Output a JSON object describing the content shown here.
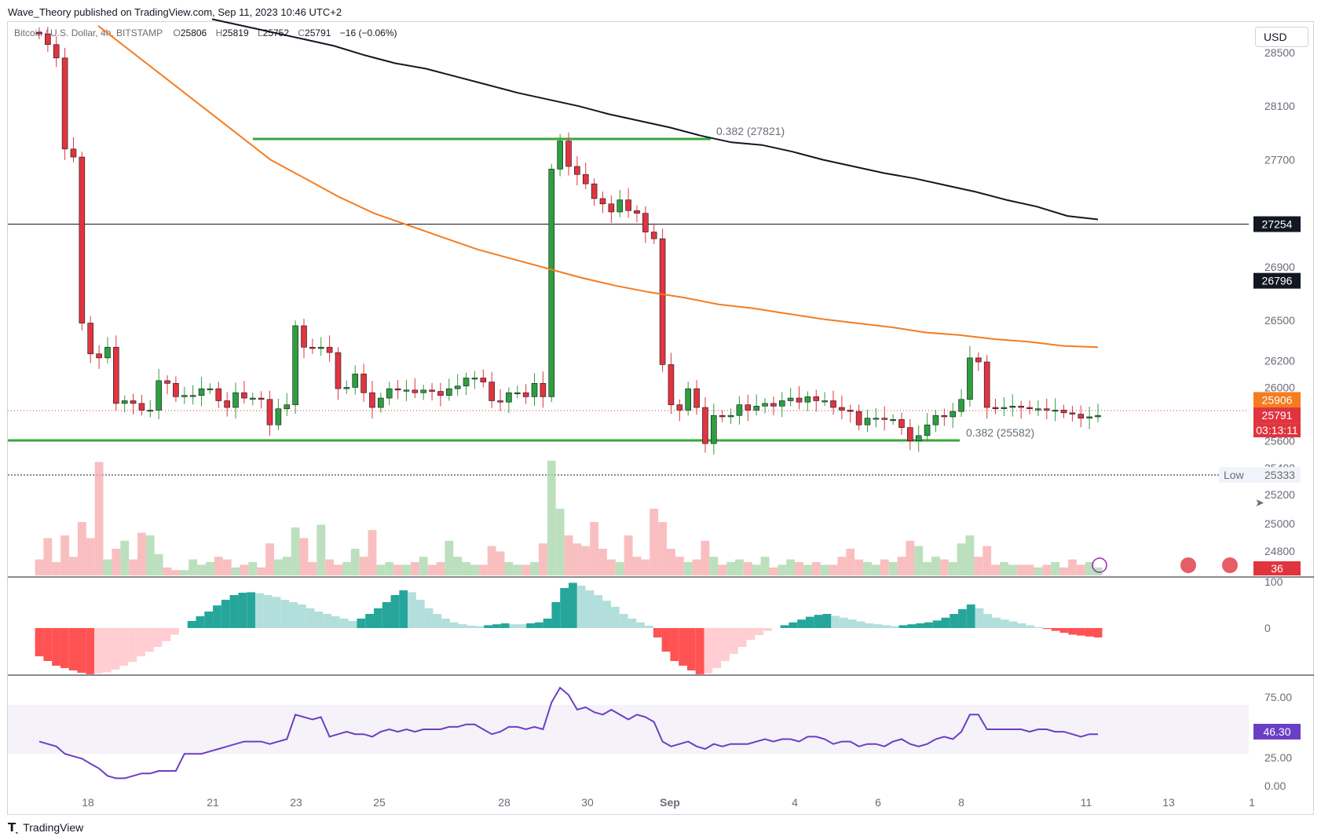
{
  "header": {
    "published": "Wave_Theory published on TradingView.com, Sep 11, 2023 10:46 UTC+2"
  },
  "legend": {
    "symbol": "Bitcoin / U.S. Dollar, 4h, BITSTAMP",
    "open_label": "O",
    "open": "25806",
    "high_label": "H",
    "high": "25819",
    "low_label": "L",
    "low": "25752",
    "close_label": "C",
    "close": "25791",
    "change": "−16 (−0.06%)"
  },
  "currency_button": "USD",
  "footer": {
    "brand": "TradingView"
  },
  "colors": {
    "up": "#26a69a",
    "candle_up": "#2e9e3e",
    "candle_down": "#e0343f",
    "ema50": "#f57c1f",
    "ema200": "#131722",
    "fib": "#3aa53a",
    "rsi": "#6a3fc4",
    "macd": "#2962ff",
    "signal": "#f57c1f"
  },
  "chart_data": [
    {
      "type": "candlestick",
      "title": "Bitcoin / U.S. Dollar, 4h, BITSTAMP",
      "ylim": [
        25000,
        28700
      ],
      "y_ticks": [
        "28500",
        "28100",
        "27700",
        "26900",
        "26500",
        "26200",
        "26000",
        "25600",
        "25400",
        "25200",
        "25000",
        "24800"
      ],
      "x_ticks": [
        "18",
        "21",
        "23",
        "25",
        "28",
        "30",
        "Sep",
        "4",
        "6",
        "8",
        "11",
        "13",
        "1"
      ],
      "price_tags": [
        {
          "label": "27254",
          "value": 27254,
          "color": "#131722"
        },
        {
          "label": "26796",
          "value": 26796,
          "color": "#131722"
        },
        {
          "label": "25906",
          "value": 25906,
          "color": "#f57c1f"
        },
        {
          "label": "25791",
          "value": 25791,
          "color": "#e0343f"
        }
      ],
      "countdown": "03:13:11",
      "low_marker": {
        "label": "Low",
        "value": "25333"
      },
      "volume_tag": "36",
      "horizontal_lines": [
        {
          "value": 27254,
          "color": "#131722"
        },
        {
          "value": 25333,
          "color": "#131722",
          "dotted": true
        }
      ],
      "fib_levels": [
        {
          "label": "0.382 (27821)",
          "value": 27821
        },
        {
          "label": "0.382 (25582)",
          "value": 25582
        }
      ],
      "ohlc_approx": {
        "start_close": 28650,
        "closes": [
          28640,
          28560,
          28460,
          27780,
          27720,
          26480,
          26250,
          26220,
          26300,
          25880,
          25900,
          25880,
          25830,
          25830,
          26050,
          26030,
          25930,
          25940,
          25940,
          25990,
          25990,
          25900,
          25850,
          25960,
          25920,
          25920,
          25910,
          25720,
          25840,
          25870,
          26460,
          26300,
          26290,
          26300,
          26260,
          25990,
          26000,
          26100,
          25960,
          25850,
          25920,
          25990,
          25980,
          25980,
          25960,
          25980,
          25970,
          25940,
          25990,
          26010,
          26070,
          26070,
          26040,
          25900,
          25890,
          25960,
          25960,
          25930,
          26030,
          25930,
          27630,
          27840,
          27650,
          27590,
          27520,
          27410,
          27370,
          27310,
          27400,
          27320,
          27300,
          27160,
          27110,
          26170,
          25870,
          25830,
          25990,
          25850,
          25580,
          25790,
          25780,
          25790,
          25870,
          25830,
          25860,
          25880,
          25860,
          25900,
          25920,
          25890,
          25930,
          25900,
          25900,
          25850,
          25830,
          25820,
          25720,
          25770,
          25770,
          25760,
          25760,
          25700,
          25600,
          25640,
          25720,
          25790,
          25780,
          25820,
          25910,
          26220,
          26190,
          25850,
          25840,
          25850,
          25860,
          25850,
          25840,
          25840,
          25830,
          25830,
          25810,
          25800,
          25770,
          25780,
          25790
        ],
        "ema50": [
          28700,
          28500,
          28300,
          28100,
          27900,
          27700,
          27560,
          27420,
          27300,
          27210,
          27120,
          27030,
          26960,
          26890,
          26820,
          26760,
          26710,
          26670,
          26620,
          26590,
          26550,
          26510,
          26480,
          26450,
          26410,
          26390,
          26360,
          26340,
          26310,
          26300
        ],
        "ema200": [
          28750,
          28700,
          28650,
          28600,
          28550,
          28480,
          28420,
          28380,
          28320,
          28260,
          28200,
          28150,
          28100,
          28040,
          27990,
          27940,
          27880,
          27830,
          27810,
          27760,
          27700,
          27650,
          27600,
          27560,
          27510,
          27460,
          27400,
          27350,
          27280,
          27254
        ]
      }
    },
    {
      "type": "bar",
      "title": "Volume",
      "series": [
        {
          "values": [
            12,
            28,
            10,
            30,
            14,
            40,
            28,
            85,
            12,
            20,
            26,
            12,
            32,
            30,
            16,
            6,
            4,
            4,
            12,
            8,
            10,
            14,
            12,
            6,
            8,
            10,
            6,
            24,
            12,
            14,
            36,
            28,
            10,
            38,
            12,
            8,
            10,
            20,
            14,
            34,
            8,
            10,
            8,
            8,
            10,
            14,
            8,
            10,
            26,
            14,
            10,
            8,
            8,
            22,
            18,
            10,
            8,
            8,
            10,
            24,
            86,
            50,
            30,
            24,
            22,
            40,
            20,
            12,
            10,
            30,
            14,
            12,
            50,
            40,
            20,
            14,
            10,
            12,
            26,
            14,
            8,
            10,
            12,
            10,
            8,
            14,
            6,
            8,
            12,
            10,
            8,
            10,
            8,
            8,
            14,
            20,
            12,
            10,
            8,
            12,
            10,
            14,
            26,
            22,
            10,
            14,
            12,
            10,
            24,
            30,
            14,
            22,
            8,
            10,
            8,
            8,
            8,
            6,
            8,
            10,
            6,
            12,
            8,
            10,
            6
          ]
        }
      ]
    },
    {
      "type": "bar",
      "title": "MACD",
      "y_ticks": [
        "100",
        "0"
      ],
      "series": [
        {
          "values": [
            -60,
            -70,
            -80,
            -85,
            -90,
            -95,
            -98,
            -96,
            -94,
            -88,
            -80,
            -72,
            -60,
            -50,
            -40,
            -28,
            -14,
            0,
            15,
            25,
            35,
            48,
            60,
            70,
            75,
            76,
            74,
            70,
            66,
            60,
            55,
            50,
            42,
            35,
            30,
            25,
            20,
            15,
            20,
            30,
            42,
            55,
            70,
            80,
            76,
            60,
            42,
            30,
            20,
            12,
            8,
            5,
            4,
            6,
            8,
            10,
            8,
            8,
            10,
            12,
            20,
            55,
            85,
            96,
            90,
            80,
            70,
            58,
            45,
            30,
            20,
            12,
            5,
            -20,
            -50,
            -70,
            -80,
            -90,
            -98,
            -96,
            -85,
            -70,
            -55,
            -40,
            -25,
            -15,
            -6,
            0,
            6,
            12,
            18,
            24,
            28,
            30,
            26,
            22,
            18,
            14,
            10,
            8,
            6,
            4,
            6,
            8,
            10,
            12,
            16,
            22,
            30,
            40,
            50,
            42,
            30,
            22,
            18,
            14,
            10,
            6,
            2,
            -2,
            -6,
            -10,
            -14,
            -16,
            -18,
            -20
          ]
        }
      ]
    },
    {
      "type": "line",
      "title": "RSI",
      "y_ticks": [
        "75.00",
        "25.00",
        "0.00"
      ],
      "current": "46.30",
      "ylim": [
        0,
        100
      ],
      "series": [
        {
          "values": [
            40,
            38,
            36,
            30,
            28,
            26,
            22,
            18,
            12,
            10,
            10,
            12,
            14,
            14,
            16,
            16,
            16,
            30,
            30,
            30,
            32,
            34,
            36,
            38,
            40,
            40,
            40,
            38,
            40,
            42,
            62,
            60,
            58,
            60,
            44,
            46,
            48,
            46,
            46,
            44,
            48,
            50,
            48,
            50,
            48,
            50,
            50,
            50,
            52,
            52,
            54,
            54,
            50,
            46,
            48,
            52,
            52,
            50,
            52,
            50,
            72,
            84,
            78,
            66,
            68,
            64,
            62,
            66,
            62,
            58,
            62,
            60,
            56,
            40,
            36,
            38,
            40,
            36,
            34,
            38,
            36,
            38,
            38,
            38,
            40,
            42,
            40,
            42,
            42,
            40,
            44,
            44,
            42,
            38,
            40,
            40,
            36,
            38,
            38,
            36,
            40,
            42,
            38,
            36,
            38,
            42,
            44,
            42,
            48,
            62,
            62,
            50,
            50,
            50,
            50,
            50,
            48,
            50,
            50,
            48,
            48,
            46,
            44,
            46,
            46
          ]
        }
      ]
    }
  ]
}
